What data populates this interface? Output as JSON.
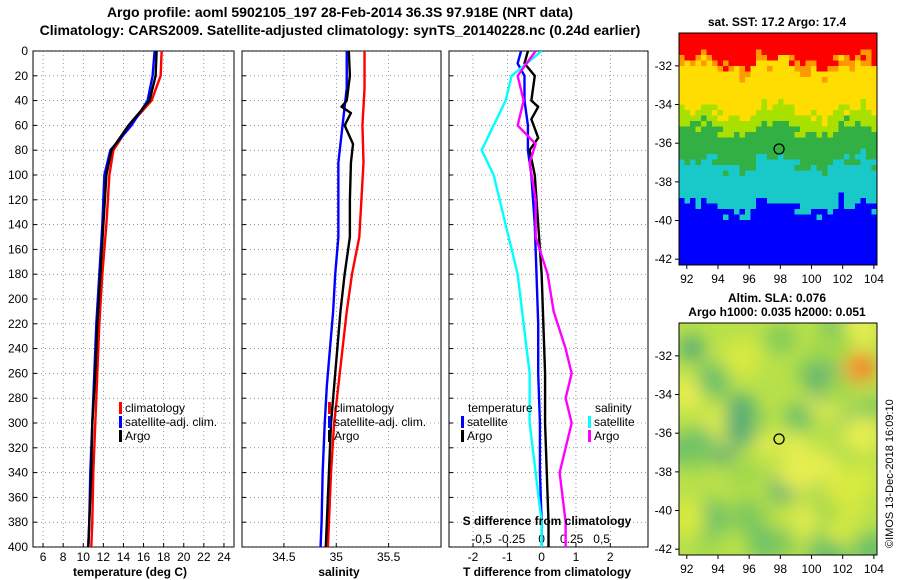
{
  "figure": {
    "title_line1": "Argo profile: aoml 5902105_197 28-Feb-2014 36.3S 97.918E (NRT data)",
    "title_line2": "Climatology: CARS2009. Satellite-adjusted climatology: synTS_20140228.nc (0.24d earlier)",
    "credit": "©IMOS 13-Dec-2018 16:09:10"
  },
  "colors": {
    "climatology": "#ff0000",
    "satellite": "#0000ff",
    "argo": "#000000",
    "sal_satellite": "#00ffff",
    "sal_argo": "#ff00ff",
    "grid": "#555555"
  },
  "chart_data": [
    {
      "id": "temperature",
      "type": "line",
      "xlabel": "temperature (deg C)",
      "ylabel": "",
      "xlim": [
        5,
        25
      ],
      "ylim": [
        0,
        400
      ],
      "x_ticks": [
        "6",
        "8",
        "10",
        "12",
        "14",
        "16",
        "18",
        "20",
        "22",
        "24"
      ],
      "y_ticks": [
        "0",
        "20",
        "40",
        "60",
        "80",
        "100",
        "120",
        "140",
        "160",
        "180",
        "200",
        "220",
        "240",
        "260",
        "280",
        "300",
        "320",
        "340",
        "360",
        "380",
        "400"
      ],
      "legend": [
        "climatology",
        "satellite-adj. clim.",
        "Argo"
      ],
      "series": [
        {
          "name": "climatology",
          "points": [
            [
              17.8,
              0
            ],
            [
              17.7,
              20
            ],
            [
              16.8,
              40
            ],
            [
              14.6,
              60
            ],
            [
              13.0,
              80
            ],
            [
              12.6,
              100
            ],
            [
              12.3,
              140
            ],
            [
              11.9,
              180
            ],
            [
              11.6,
              220
            ],
            [
              11.4,
              260
            ],
            [
              11.2,
              300
            ],
            [
              11.0,
              340
            ],
            [
              10.9,
              380
            ],
            [
              10.8,
              400
            ]
          ]
        },
        {
          "name": "satellite-adj. clim.",
          "points": [
            [
              17.1,
              0
            ],
            [
              16.9,
              20
            ],
            [
              16.4,
              40
            ],
            [
              14.8,
              60
            ],
            [
              12.7,
              80
            ],
            [
              12.1,
              100
            ],
            [
              11.9,
              140
            ],
            [
              11.6,
              180
            ],
            [
              11.3,
              220
            ],
            [
              11.1,
              260
            ],
            [
              10.9,
              300
            ],
            [
              10.7,
              340
            ],
            [
              10.6,
              380
            ],
            [
              10.5,
              400
            ]
          ]
        },
        {
          "name": "Argo",
          "points": [
            [
              17.3,
              0
            ],
            [
              17.2,
              20
            ],
            [
              16.6,
              40
            ],
            [
              14.5,
              60
            ],
            [
              12.8,
              80
            ],
            [
              12.3,
              100
            ],
            [
              12.0,
              140
            ],
            [
              11.7,
              180
            ],
            [
              11.4,
              220
            ],
            [
              11.2,
              260
            ],
            [
              10.9,
              300
            ],
            [
              10.8,
              340
            ],
            [
              10.6,
              380
            ],
            [
              10.5,
              400
            ]
          ]
        }
      ]
    },
    {
      "id": "salinity",
      "type": "line",
      "xlabel": "salinity",
      "ylabel": "",
      "xlim": [
        34.1,
        36.0
      ],
      "ylim": [
        0,
        400
      ],
      "x_ticks": [
        "34.5",
        "35",
        "35.5"
      ],
      "legend": [
        "climatology",
        "satellite-adj. clim.",
        "Argo"
      ],
      "series": [
        {
          "name": "climatology",
          "points": [
            [
              35.27,
              0
            ],
            [
              35.27,
              30
            ],
            [
              35.25,
              60
            ],
            [
              35.26,
              90
            ],
            [
              35.24,
              120
            ],
            [
              35.22,
              150
            ],
            [
              35.15,
              180
            ],
            [
              35.1,
              210
            ],
            [
              35.06,
              240
            ],
            [
              35.02,
              270
            ],
            [
              34.98,
              300
            ],
            [
              34.95,
              340
            ],
            [
              34.93,
              380
            ],
            [
              34.92,
              400
            ]
          ]
        },
        {
          "name": "satellite-adj. clim.",
          "points": [
            [
              35.1,
              0
            ],
            [
              35.1,
              30
            ],
            [
              35.06,
              60
            ],
            [
              35.02,
              90
            ],
            [
              35.02,
              120
            ],
            [
              35.02,
              150
            ],
            [
              34.99,
              180
            ],
            [
              34.97,
              210
            ],
            [
              34.94,
              240
            ],
            [
              34.91,
              270
            ],
            [
              34.89,
              300
            ],
            [
              34.87,
              340
            ],
            [
              34.86,
              380
            ],
            [
              34.85,
              400
            ]
          ]
        },
        {
          "name": "Argo",
          "points": [
            [
              35.12,
              0
            ],
            [
              35.13,
              20
            ],
            [
              35.1,
              40
            ],
            [
              35.05,
              45
            ],
            [
              35.14,
              50
            ],
            [
              35.08,
              60
            ],
            [
              35.16,
              75
            ],
            [
              35.14,
              90
            ],
            [
              35.13,
              120
            ],
            [
              35.13,
              150
            ],
            [
              35.08,
              180
            ],
            [
              35.04,
              210
            ],
            [
              35.01,
              240
            ],
            [
              34.98,
              270
            ],
            [
              34.95,
              300
            ],
            [
              34.93,
              340
            ],
            [
              34.91,
              380
            ],
            [
              34.9,
              400
            ]
          ]
        }
      ]
    },
    {
      "id": "difference",
      "type": "line",
      "xlabel": "T difference from climatology",
      "x2label": "S difference from climatology",
      "xlim": [
        -2.7,
        3.1
      ],
      "x_ticks": [
        "-2",
        "-1",
        "0",
        "1",
        "2"
      ],
      "x2_ticks": [
        "-0.5",
        "-0.25",
        "0",
        "0.25",
        "0.5"
      ],
      "legend_temperature_title": "temperature",
      "legend_salinity_title": "salinity",
      "legend": [
        "satellite",
        "Argo",
        "satellite",
        "Argo"
      ],
      "series": [
        {
          "name": "T satellite",
          "points": [
            [
              -0.6,
              0
            ],
            [
              -0.7,
              10
            ],
            [
              -0.5,
              20
            ],
            [
              -0.5,
              40
            ],
            [
              -0.4,
              60
            ],
            [
              -0.4,
              80
            ],
            [
              -0.3,
              100
            ],
            [
              -0.2,
              140
            ],
            [
              -0.15,
              180
            ],
            [
              -0.1,
              220
            ],
            [
              -0.1,
              260
            ],
            [
              -0.05,
              300
            ],
            [
              -0.05,
              340
            ],
            [
              0.0,
              380
            ],
            [
              0.0,
              400
            ]
          ]
        },
        {
          "name": "T Argo",
          "points": [
            [
              -0.4,
              0
            ],
            [
              -0.5,
              10
            ],
            [
              -0.2,
              20
            ],
            [
              -0.3,
              40
            ],
            [
              -0.1,
              45
            ],
            [
              -0.3,
              55
            ],
            [
              -0.1,
              70
            ],
            [
              -0.35,
              80
            ],
            [
              -0.2,
              100
            ],
            [
              -0.1,
              140
            ],
            [
              0.0,
              180
            ],
            [
              0.05,
              220
            ],
            [
              0.1,
              260
            ],
            [
              0.1,
              300
            ],
            [
              0.15,
              340
            ],
            [
              0.2,
              380
            ],
            [
              0.2,
              400
            ]
          ]
        },
        {
          "name": "S satellite",
          "points": [
            [
              0.0,
              0
            ],
            [
              -0.25,
              20
            ],
            [
              -0.3,
              40
            ],
            [
              -0.5,
              80
            ],
            [
              -0.4,
              100
            ],
            [
              -0.3,
              140
            ],
            [
              -0.2,
              180
            ],
            [
              -0.15,
              220
            ],
            [
              -0.1,
              260
            ],
            [
              -0.1,
              300
            ],
            [
              -0.05,
              340
            ],
            [
              0.0,
              380
            ],
            [
              0.0,
              400
            ]
          ]
        },
        {
          "name": "S Argo",
          "points": [
            [
              -0.05,
              0
            ],
            [
              -0.2,
              20
            ],
            [
              -0.15,
              40
            ],
            [
              -0.2,
              60
            ],
            [
              -0.05,
              75
            ],
            [
              -0.1,
              90
            ],
            [
              -0.05,
              120
            ],
            [
              -0.05,
              150
            ],
            [
              0.05,
              180
            ],
            [
              0.1,
              210
            ],
            [
              0.2,
              240
            ],
            [
              0.25,
              260
            ],
            [
              0.2,
              280
            ],
            [
              0.25,
              300
            ],
            [
              0.15,
              340
            ],
            [
              0.2,
              380
            ],
            [
              0.2,
              400
            ]
          ]
        }
      ]
    },
    {
      "id": "sst_map",
      "type": "heatmap",
      "title": "sat. SST: 17.2 Argo: 17.4",
      "x_ticks": [
        "92",
        "94",
        "96",
        "98",
        "100",
        "102",
        "104"
      ],
      "y_ticks": [
        "-32",
        "-34",
        "-36",
        "-38",
        "-40",
        "-42"
      ],
      "xlim": [
        91.5,
        104.2
      ],
      "ylim": [
        -42.3,
        -30.3
      ],
      "marker": [
        97.918,
        -36.3
      ]
    },
    {
      "id": "sla_map",
      "type": "heatmap",
      "title_line1": "Altim. SLA: 0.076",
      "title_line2": "Argo h1000: 0.035 h2000: 0.051",
      "x_ticks": [
        "92",
        "94",
        "96",
        "98",
        "100",
        "102",
        "104"
      ],
      "y_ticks": [
        "-32",
        "-34",
        "-36",
        "-38",
        "-40",
        "-42"
      ],
      "xlim": [
        91.5,
        104.2
      ],
      "ylim": [
        -42.3,
        -30.3
      ],
      "marker": [
        97.918,
        -36.3
      ]
    }
  ]
}
